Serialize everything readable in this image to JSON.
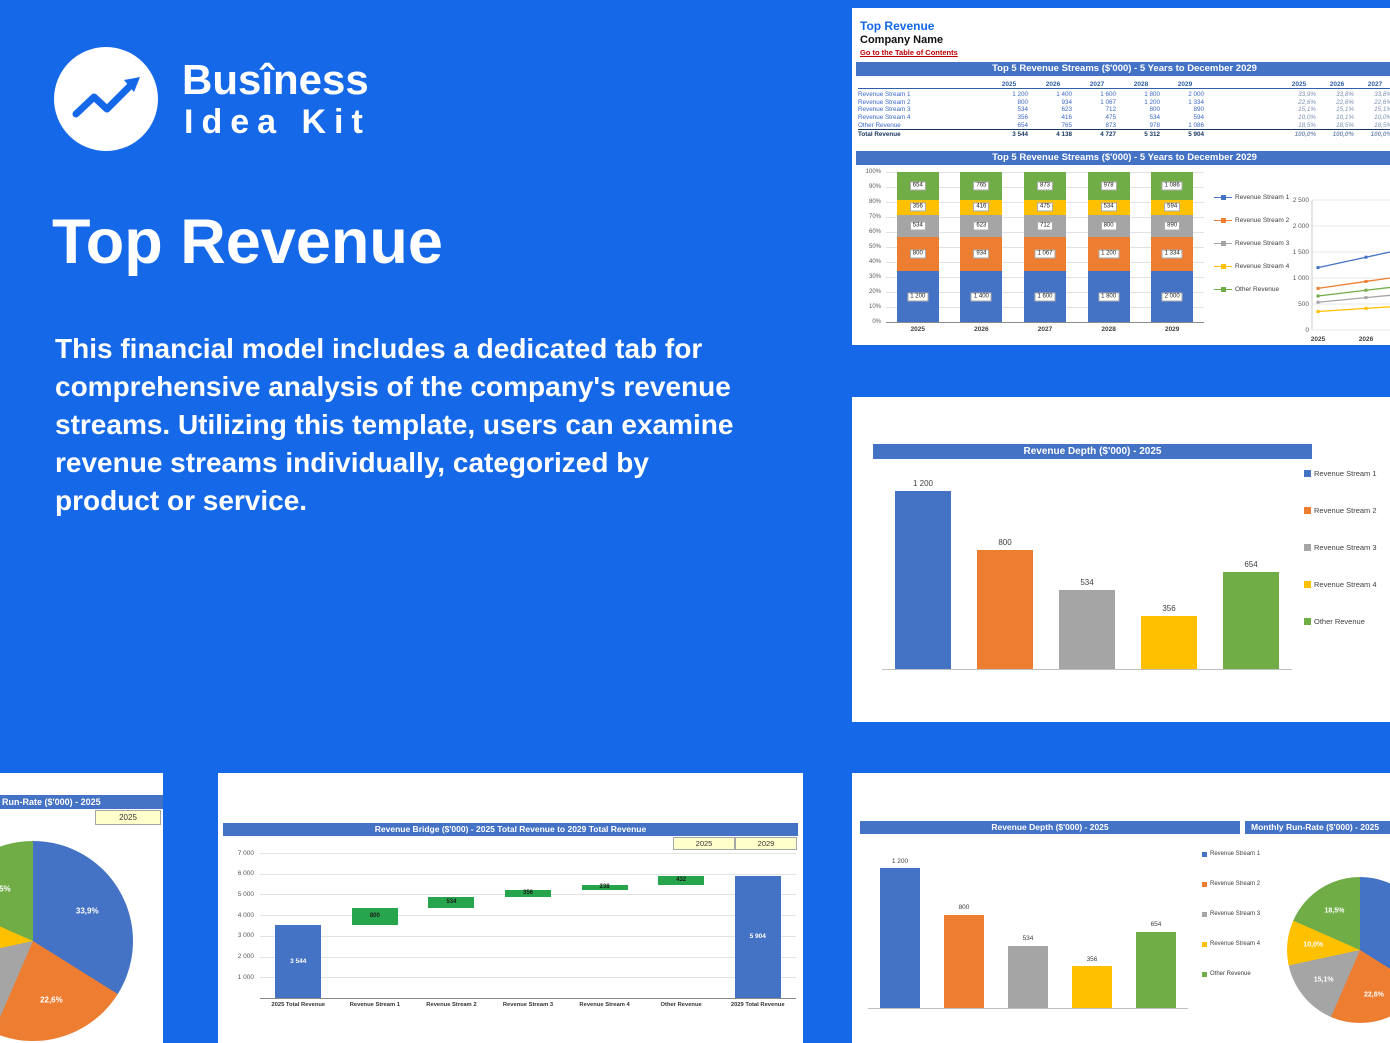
{
  "brand": {
    "line1": "Busîness",
    "line2": "Idea Kit"
  },
  "hero": {
    "title": "Top Revenue",
    "description": "This financial model includes a dedicated tab for comprehensive analysis of the company's revenue streams. Utilizing this template, users can examine revenue streams individually, categorized by product or service."
  },
  "palette": {
    "background": "#1568E8",
    "excel_header": "#4472C4",
    "stream1": "#4472C4",
    "stream2": "#ED7D31",
    "stream3": "#A5A5A5",
    "stream4": "#FFC000",
    "other": "#70AD47",
    "bridge_delta": "#27A54C",
    "bridge_total": "#4472C4",
    "link_red": "#C00000",
    "selector_yellow": "#FFFFCC"
  },
  "sheet": {
    "tab_title": "Top Revenue",
    "company": "Company Name",
    "toc_link": "Go to the Table of Contents"
  },
  "panels": {
    "monthly_runrate_title": "Monthly Run-Rate ($'000) - 2025"
  },
  "revenue_table": {
    "title": "Top 5 Revenue Streams ($'000) - 5 Years to December 2029",
    "years": [
      "2025",
      "2026",
      "2027",
      "2028",
      "2029"
    ],
    "pct_years": [
      "2025",
      "2026",
      "2027"
    ],
    "rows": [
      {
        "name": "Revenue Stream 1",
        "values": [
          "1 200",
          "1 400",
          "1 600",
          "1 800",
          "2 000"
        ],
        "pcts": [
          "33,9%",
          "33,8%",
          "33,8%"
        ],
        "is_total": false
      },
      {
        "name": "Revenue Stream 2",
        "values": [
          "800",
          "934",
          "1 067",
          "1 200",
          "1 334"
        ],
        "pcts": [
          "22,6%",
          "22,6%",
          "22,6%"
        ],
        "is_total": false
      },
      {
        "name": "Revenue Stream 3",
        "values": [
          "534",
          "623",
          "712",
          "800",
          "890"
        ],
        "pcts": [
          "15,1%",
          "15,1%",
          "15,1%"
        ],
        "is_total": false
      },
      {
        "name": "Revenue Stream 4",
        "values": [
          "356",
          "416",
          "475",
          "534",
          "594"
        ],
        "pcts": [
          "10,0%",
          "10,1%",
          "10,0%"
        ],
        "is_total": false
      },
      {
        "name": "Other Revenue",
        "values": [
          "654",
          "765",
          "873",
          "978",
          "1 086"
        ],
        "pcts": [
          "18,5%",
          "18,5%",
          "18,5%"
        ],
        "is_total": false
      },
      {
        "name": "Total Revenue",
        "values": [
          "3 544",
          "4 138",
          "4 727",
          "5 312",
          "5 904"
        ],
        "pcts": [
          "100,0%",
          "100,0%",
          "100,0%"
        ],
        "is_total": true
      }
    ]
  },
  "chart_data": [
    {
      "id": "stacked_streams",
      "type": "bar",
      "subtype": "stacked_100pct",
      "title": "Top 5 Revenue Streams ($'000) - 5 Years to December 2029",
      "categories": [
        "2025",
        "2026",
        "2027",
        "2028",
        "2029"
      ],
      "series": [
        {
          "name": "Revenue Stream 1",
          "color": "#4472C4",
          "values": [
            1200,
            1400,
            1600,
            1800,
            2000
          ],
          "labels": [
            "1 200",
            "1 400",
            "1 600",
            "1 800",
            "2 000"
          ]
        },
        {
          "name": "Revenue Stream 2",
          "color": "#ED7D31",
          "values": [
            800,
            934,
            1067,
            1200,
            1334
          ],
          "labels": [
            "800",
            "934",
            "1 067",
            "1 200",
            "1 334"
          ]
        },
        {
          "name": "Revenue Stream 3",
          "color": "#A5A5A5",
          "values": [
            534,
            623,
            712,
            800,
            890
          ],
          "labels": [
            "534",
            "623",
            "712",
            "800",
            "890"
          ]
        },
        {
          "name": "Revenue Stream 4",
          "color": "#FFC000",
          "values": [
            356,
            416,
            475,
            534,
            594
          ],
          "labels": [
            "356",
            "416",
            "475",
            "534",
            "594"
          ]
        },
        {
          "name": "Other Revenue",
          "color": "#70AD47",
          "values": [
            654,
            765,
            873,
            978,
            1086
          ],
          "labels": [
            "654",
            "765",
            "873",
            "978",
            "1 086"
          ]
        }
      ],
      "totals": [
        3544,
        4138,
        4727,
        5312,
        5904
      ],
      "y_axis": {
        "ticks": [
          "100%",
          "90%",
          "80%",
          "70%",
          "60%",
          "50%",
          "40%",
          "30%",
          "20%",
          "10%",
          "0%"
        ]
      },
      "legend": [
        "Revenue Stream 1",
        "Revenue Stream 2",
        "Revenue Stream 3",
        "Revenue Stream 4",
        "Other Revenue"
      ],
      "legend_position": "right"
    },
    {
      "id": "streams_line",
      "type": "line",
      "x": [
        "2025",
        "2026",
        "2027",
        "2028",
        "2029"
      ],
      "x_visible": [
        "2025",
        "2026"
      ],
      "y_axis": {
        "ticks": [
          "2 500",
          "2 000",
          "1 500",
          "1 000",
          "500",
          "0"
        ],
        "max": 2500
      },
      "series": [
        {
          "name": "Revenue Stream 1",
          "color": "#4472C4",
          "values": [
            1200,
            1400,
            1600,
            1800,
            2000
          ]
        },
        {
          "name": "Revenue Stream 2",
          "color": "#ED7D31",
          "values": [
            800,
            934,
            1067,
            1200,
            1334
          ]
        },
        {
          "name": "Revenue Stream 3",
          "color": "#A5A5A5",
          "values": [
            534,
            623,
            712,
            800,
            890
          ]
        },
        {
          "name": "Revenue Stream 4",
          "color": "#FFC000",
          "values": [
            356,
            416,
            475,
            534,
            594
          ]
        },
        {
          "name": "Other Revenue",
          "color": "#70AD47",
          "values": [
            654,
            765,
            873,
            978,
            1086
          ]
        }
      ],
      "clipped_at_right_edge": true
    },
    {
      "id": "revenue_depth",
      "type": "bar",
      "title": "Revenue Depth ($'000) - 2025",
      "categories": [
        "Revenue Stream 1",
        "Revenue Stream 2",
        "Revenue Stream 3",
        "Revenue Stream 4",
        "Other Revenue"
      ],
      "values": [
        1200,
        800,
        534,
        356,
        654
      ],
      "labels": [
        "1 200",
        "800",
        "534",
        "356",
        "654"
      ],
      "colors": [
        "#4472C4",
        "#ED7D31",
        "#A5A5A5",
        "#FFC000",
        "#70AD47"
      ],
      "legend": [
        "Revenue Stream 1",
        "Revenue Stream 2",
        "Revenue Stream 3",
        "Revenue Stream 4",
        "Other Revenue"
      ],
      "legend_position": "right"
    },
    {
      "id": "runrate_pie",
      "type": "pie",
      "title": "Run-Rate ($'000) - 2025",
      "year_selector": "2025",
      "slices": [
        {
          "name": "Revenue Stream 1",
          "pct": 33.9,
          "label": "33,9%",
          "color": "#4472C4"
        },
        {
          "name": "Revenue Stream 2",
          "pct": 22.6,
          "label": "22,6%",
          "color": "#ED7D31"
        },
        {
          "name": "Revenue Stream 3",
          "pct": 15.1,
          "label": "15,1%",
          "color": "#A5A5A5"
        },
        {
          "name": "Revenue Stream 4",
          "pct": 10.0,
          "label": "10,0%",
          "color": "#FFC000"
        },
        {
          "name": "Other Revenue",
          "pct": 18.5,
          "label": "18,5%",
          "color": "#70AD47"
        }
      ]
    },
    {
      "id": "revenue_bridge",
      "type": "waterfall",
      "title": "Revenue Bridge ($'000) - 2025 Total Revenue to 2029 Total Revenue",
      "selectors": [
        "2025",
        "2029"
      ],
      "y_axis": {
        "ticks": [
          "7 000",
          "6 000",
          "5 000",
          "4 000",
          "3 000",
          "2 000",
          "1 000"
        ],
        "max": 7000
      },
      "total_color": "#4472C4",
      "delta_color": "#27A54C",
      "steps": [
        {
          "label": "2025 Total Revenue",
          "kind": "total",
          "start": 0,
          "end": 3544,
          "value_label": "3 544"
        },
        {
          "label": "Revenue Stream 1",
          "kind": "delta",
          "start": 3544,
          "end": 4344,
          "value_label": "800"
        },
        {
          "label": "Revenue Stream 2",
          "kind": "delta",
          "start": 4344,
          "end": 4878,
          "value_label": "534"
        },
        {
          "label": "Revenue Stream 3",
          "kind": "delta",
          "start": 4878,
          "end": 5234,
          "value_label": "356"
        },
        {
          "label": "Revenue Stream 4",
          "kind": "delta",
          "start": 5234,
          "end": 5472,
          "value_label": "238"
        },
        {
          "label": "Other Revenue",
          "kind": "delta",
          "start": 5472,
          "end": 5904,
          "value_label": "432"
        },
        {
          "label": "2029 Total Revenue",
          "kind": "total",
          "start": 0,
          "end": 5904,
          "value_label": "5 904"
        }
      ]
    }
  ]
}
